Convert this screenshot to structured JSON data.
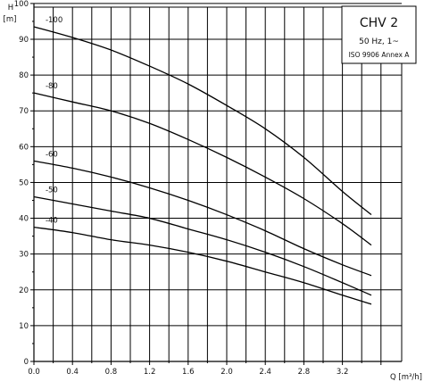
{
  "chart_data": {
    "type": "line",
    "title_box": {
      "title": "CHV 2",
      "line1": "50 Hz, 1~",
      "line2": "ISO 9906 Annex A"
    },
    "y_axis": {
      "symbol": "H",
      "unit": "[m]",
      "ylim": [
        0,
        100
      ],
      "ticks": [
        0,
        10,
        20,
        30,
        40,
        50,
        60,
        70,
        80,
        90,
        100
      ]
    },
    "x_axis": {
      "label": "Q [m³/h]",
      "xlim": [
        0,
        3.6
      ],
      "ticks": [
        0.0,
        0.4,
        0.8,
        1.2,
        1.6,
        2.0,
        2.4,
        2.8,
        3.2
      ],
      "tick_labels": [
        "0.0",
        "0.4",
        "0.8",
        "1.2",
        "1.6",
        "2.0",
        "2.4",
        "2.8",
        "3.2"
      ]
    },
    "grid": true,
    "series": [
      {
        "name": "-100",
        "x": [
          0.0,
          0.4,
          0.8,
          1.2,
          1.6,
          2.0,
          2.4,
          2.8,
          3.2,
          3.5
        ],
        "y": [
          93.5,
          90.5,
          87,
          82.5,
          77.5,
          71.5,
          65,
          57,
          47.5,
          41
        ]
      },
      {
        "name": "-80",
        "x": [
          0.0,
          0.4,
          0.8,
          1.2,
          1.6,
          2.0,
          2.4,
          2.8,
          3.2,
          3.5
        ],
        "y": [
          75,
          72.5,
          70,
          66.5,
          62,
          57,
          51.5,
          45.5,
          38.5,
          32.5
        ]
      },
      {
        "name": "-60",
        "x": [
          0.0,
          0.4,
          0.8,
          1.2,
          1.6,
          2.0,
          2.4,
          2.8,
          3.2,
          3.5
        ],
        "y": [
          56,
          54,
          51.5,
          48.5,
          45,
          41,
          36.5,
          31.5,
          27,
          24
        ]
      },
      {
        "name": "-50",
        "x": [
          0.0,
          0.4,
          0.8,
          1.2,
          1.6,
          2.0,
          2.4,
          2.8,
          3.2,
          3.5
        ],
        "y": [
          46,
          44,
          42,
          40,
          37,
          34,
          30.5,
          26.5,
          22,
          18.5
        ]
      },
      {
        "name": "-40",
        "x": [
          0.0,
          0.4,
          0.8,
          1.2,
          1.6,
          2.0,
          2.4,
          2.8,
          3.2,
          3.5
        ],
        "y": [
          37.5,
          36,
          34,
          32.5,
          30.5,
          28,
          25,
          22,
          18.5,
          16
        ]
      }
    ]
  }
}
